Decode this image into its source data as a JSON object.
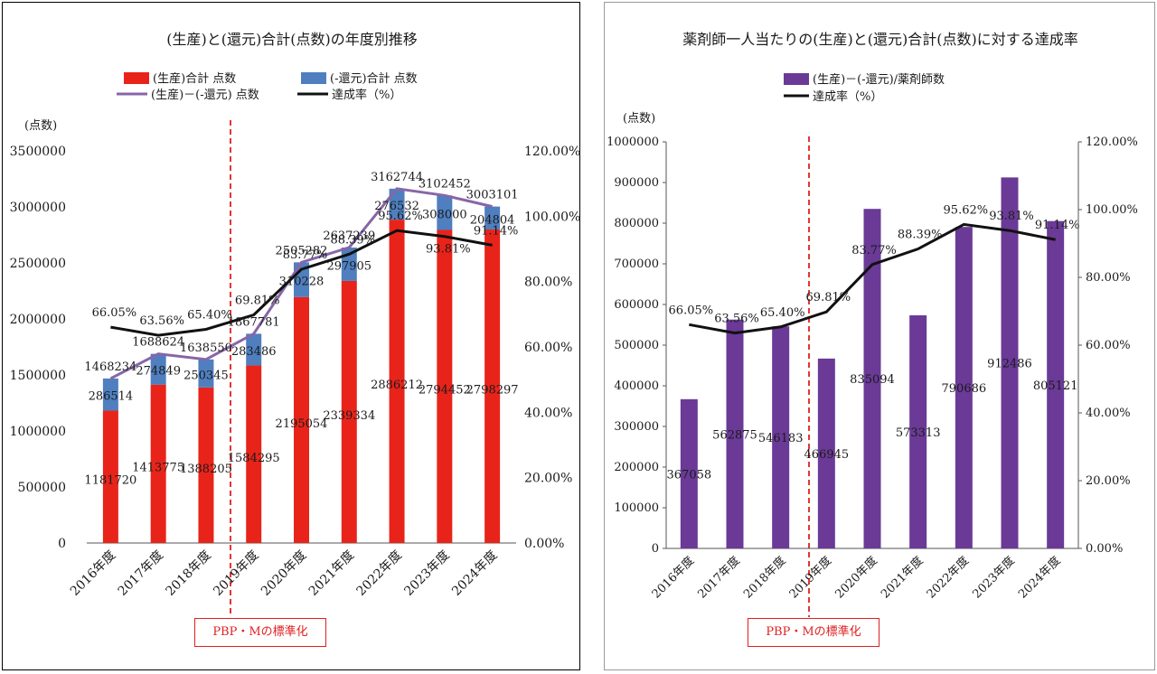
{
  "left_chart": {
    "title": "(生産)と(還元)合計(点数)の年度別推移",
    "y_unit": "(点数)",
    "legend": {
      "bar_red": "(生産)合計 点数",
      "bar_blue": "(-還元)合計 点数",
      "line_purple": "(生産)－(-還元) 点数",
      "line_black": "達成率（%）"
    },
    "standardization_label": "PBP・Mの標準化",
    "y_ticks": [
      "0",
      "500000",
      "1000000",
      "1500000",
      "2000000",
      "2500000",
      "3000000",
      "3500000"
    ],
    "y2_ticks": [
      "0.00%",
      "20.00%",
      "40.00%",
      "60.00%",
      "80.00%",
      "100.00%",
      "120.00%"
    ]
  },
  "right_chart": {
    "title": "薬剤師一人当たりの(生産)と(還元)合計(点数)に対する達成率",
    "y_unit": "(点数)",
    "legend": {
      "bar_purple": "(生産)－(-還元)/薬剤師数",
      "line_black": "達成率（%）"
    },
    "standardization_label": "PBP・Mの標準化",
    "y_ticks": [
      "0",
      "100000",
      "200000",
      "300000",
      "400000",
      "500000",
      "600000",
      "700000",
      "800000",
      "900000",
      "1000000"
    ],
    "y2_ticks": [
      "0.00%",
      "20.00%",
      "40.00%",
      "60.00%",
      "80.00%",
      "100.00%",
      "120.00%"
    ]
  },
  "chart_data": [
    {
      "type": "bar",
      "stacked": true,
      "title": "(生産)と(還元)合計(点数)の年度別推移",
      "ylabel": "(点数)",
      "categories": [
        "2016年度",
        "2017年度",
        "2018年度",
        "2019年度",
        "2020年度",
        "2021年度",
        "2022年度",
        "2023年度",
        "2024年度"
      ],
      "series": [
        {
          "name": "(生産)合計 点数",
          "kind": "bar",
          "values": [
            1181720,
            1413775,
            1388205,
            1584295,
            2195054,
            2339334,
            2886212,
            2794452,
            2798297
          ]
        },
        {
          "name": "(-還元)合計 点数",
          "kind": "bar",
          "values": [
            286514,
            274849,
            250345,
            283486,
            310228,
            297905,
            276532,
            308000,
            204804
          ]
        },
        {
          "name": "(生産)－(-還元) 点数",
          "kind": "line",
          "values": [
            1468234,
            1688624,
            1638550,
            1867781,
            2505282,
            2637239,
            3162744,
            3102452,
            3003101
          ]
        },
        {
          "name": "達成率（%）",
          "kind": "line",
          "axis": "secondary",
          "values": [
            66.05,
            63.56,
            65.4,
            69.81,
            83.77,
            88.39,
            95.62,
            93.81,
            91.14
          ]
        }
      ],
      "ylim": [
        0,
        3500000
      ],
      "y2lim": [
        0,
        120
      ],
      "grid": false,
      "legend": "top",
      "annotation": "PBP・Mの標準化"
    },
    {
      "type": "bar",
      "title": "薬剤師一人当たりの(生産)と(還元)合計(点数)に対する達成率",
      "ylabel": "(点数)",
      "categories": [
        "2016年度",
        "2017年度",
        "2018年度",
        "2019年度",
        "2020年度",
        "2021年度",
        "2022年度",
        "2023年度",
        "2024年度"
      ],
      "series": [
        {
          "name": "(生産)－(-還元)/薬剤師数",
          "kind": "bar",
          "values": [
            367058,
            562875,
            546183,
            466945,
            835094,
            573313,
            790686,
            912486,
            805121
          ]
        },
        {
          "name": "達成率（%）",
          "kind": "line",
          "axis": "secondary",
          "values": [
            66.05,
            63.56,
            65.4,
            69.81,
            83.77,
            88.39,
            95.62,
            93.81,
            91.14
          ]
        }
      ],
      "ylim": [
        0,
        1000000
      ],
      "y2lim": [
        0,
        120
      ],
      "grid": false,
      "legend": "top",
      "annotation": "PBP・Mの標準化"
    }
  ],
  "colors": {
    "red": "#e8241a",
    "blue": "#4f7fbf",
    "purple": "#6a3a96",
    "purple_line": "#8766a8",
    "black": "#111111",
    "dashed": "#e02020"
  }
}
